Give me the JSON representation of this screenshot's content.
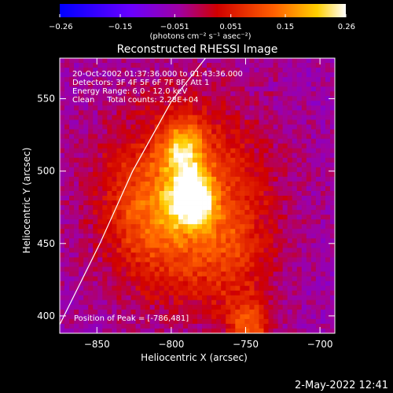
{
  "chart_data": {
    "type": "heatmap",
    "title": "Reconstructed RHESSI Image",
    "xlabel": "Heliocentric X (arcsec)",
    "ylabel": "Heliocentric Y (arcsec)",
    "xlim": [
      -875,
      -690
    ],
    "ylim": [
      388,
      578
    ],
    "xticks": [
      -850,
      -800,
      -750,
      -700
    ],
    "yticks": [
      400,
      450,
      500,
      550
    ],
    "colorbar": {
      "colormap": "hot-with-blue-negatives",
      "range": [
        -0.26,
        0.26
      ],
      "ticks": [
        "-0.26",
        "-0.15",
        "-0.051",
        "0.051",
        "0.15",
        "0.26"
      ],
      "label": "(photons cm⁻² s⁻¹ asec⁻²)",
      "colors": [
        "#0000ff",
        "#6a00ff",
        "#b000a0",
        "#d00000",
        "#ff6000",
        "#ffd000",
        "#ffffff"
      ]
    },
    "annotations": [
      "20-Oct-2002 01:37:36.000 to 01:43:36.000",
      "Detectors: 3F 4F 5F 6F 7F 8F, Att 1",
      "Energy Range: 6.0 - 12.0 keV",
      "Clean     Total counts: 2.28E+04"
    ],
    "peak_label": "Position of Peak = [-786,481]",
    "peak": [
      -786,
      481
    ],
    "sources": [
      {
        "x": -786,
        "y": 481,
        "intensity": 0.26
      },
      {
        "x": -792,
        "y": 515,
        "intensity": 0.18
      },
      {
        "x": -748,
        "y": 393,
        "intensity": 0.17
      },
      {
        "x": -815,
        "y": 470,
        "intensity": 0.09
      },
      {
        "x": -760,
        "y": 440,
        "intensity": 0.08
      }
    ],
    "limb": [
      [
        -875,
        394
      ],
      [
        -848,
        450
      ],
      [
        -826,
        500
      ],
      [
        -800,
        548
      ],
      [
        -777,
        578
      ]
    ],
    "grid": false
  },
  "footer": {
    "timestamp": "2-May-2022 12:41"
  }
}
